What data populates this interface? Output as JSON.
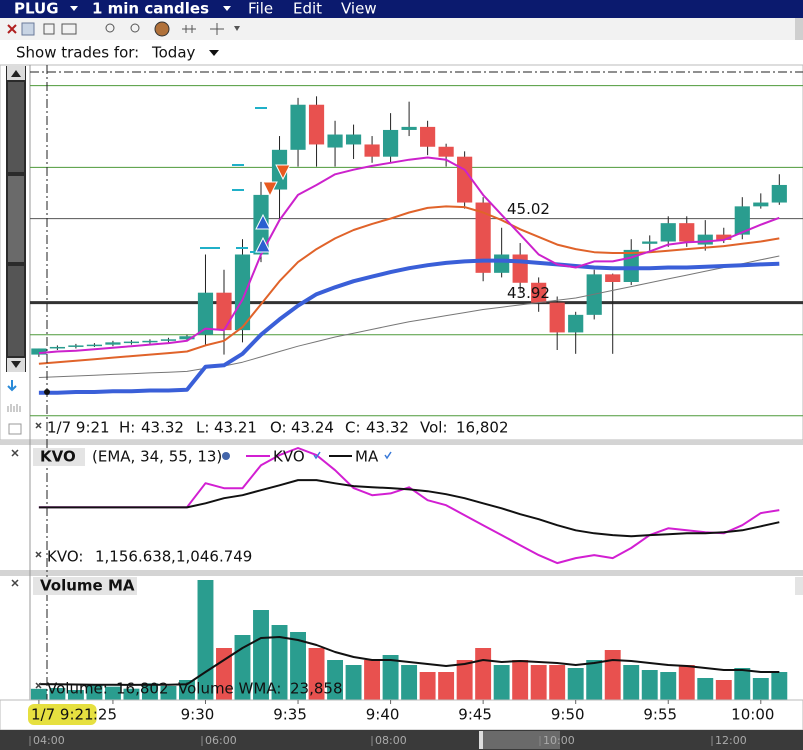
{
  "menu": {
    "symbol": "PLUG",
    "interval": "1 min candles",
    "items": [
      "File",
      "Edit",
      "View"
    ]
  },
  "trades_filter": {
    "label": "Show trades for:",
    "value": "Today"
  },
  "status": {
    "date": "1/7 9:21",
    "labels": [
      "H:",
      "L:",
      "O:",
      "C:",
      "Vol:"
    ]
  },
  "scroller": {
    "labels": [
      "04:00",
      "06:00",
      "08:00",
      "10:00",
      "12:00"
    ]
  },
  "chart_data": [
    {
      "type": "candlestick",
      "x": [
        0,
        1,
        2,
        3,
        4,
        5,
        6,
        7,
        8,
        9,
        10,
        11,
        12,
        13,
        14,
        15,
        16,
        17,
        18,
        19,
        20,
        21,
        22,
        23,
        24,
        25,
        26,
        27,
        28,
        29,
        30,
        31,
        32,
        33,
        34,
        35,
        36,
        37,
        38,
        39,
        40
      ],
      "xlim": [
        -0.48,
        41.28
      ],
      "ylim": [
        42.41,
        47.03
      ],
      "open": [
        43.24,
        43.32,
        43.34,
        43.36,
        43.37,
        43.4,
        43.41,
        43.42,
        43.44,
        43.5,
        44.05,
        43.56,
        44.55,
        45.4,
        45.92,
        46.51,
        45.95,
        45.99,
        45.99,
        45.83,
        46.18,
        46.22,
        45.96,
        45.83,
        45.23,
        44.31,
        44.55,
        44.18,
        43.92,
        43.53,
        43.76,
        44.29,
        44.19,
        44.69,
        44.72,
        44.96,
        44.68,
        44.81,
        44.81,
        45.18,
        45.23
      ],
      "high": [
        43.32,
        43.36,
        43.38,
        43.39,
        43.42,
        43.43,
        43.44,
        43.46,
        43.5,
        44.55,
        44.35,
        44.75,
        45.5,
        46.1,
        46.6,
        46.62,
        46.3,
        46.25,
        46.1,
        46.4,
        46.55,
        46.3,
        46.0,
        45.9,
        45.3,
        44.9,
        44.7,
        44.25,
        44.0,
        43.8,
        44.35,
        44.3,
        44.75,
        44.8,
        45.05,
        45.05,
        45.0,
        44.9,
        45.3,
        45.35,
        45.6
      ],
      "low": [
        43.21,
        43.3,
        43.32,
        43.34,
        43.35,
        43.37,
        43.38,
        43.4,
        43.42,
        43.37,
        43.24,
        43.4,
        44.45,
        45.0,
        45.7,
        45.7,
        45.7,
        45.8,
        45.75,
        45.75,
        46.1,
        45.85,
        45.7,
        45.15,
        44.2,
        44.25,
        44.05,
        43.8,
        43.3,
        43.25,
        43.7,
        43.25,
        44.15,
        44.6,
        44.65,
        44.65,
        44.6,
        44.7,
        44.75,
        45.15,
        45.2
      ],
      "close": [
        43.32,
        43.34,
        43.36,
        43.37,
        43.4,
        43.41,
        43.42,
        43.44,
        43.48,
        44.05,
        43.56,
        44.55,
        45.33,
        45.92,
        46.51,
        45.99,
        46.12,
        46.12,
        45.83,
        46.18,
        46.22,
        45.96,
        45.83,
        45.23,
        44.31,
        44.55,
        44.18,
        43.92,
        43.53,
        43.76,
        44.29,
        44.19,
        44.61,
        44.72,
        44.96,
        44.72,
        44.81,
        44.74,
        45.18,
        45.23,
        45.46
      ],
      "up_color": "#2a9d8f",
      "down_color": "#e8514f",
      "green_levels": [
        46.76,
        45.69,
        43.5,
        42.44
      ],
      "green_color": "#4e9a3a",
      "levels": [
        45.02,
        43.92
      ],
      "level_colors": [
        "#555555",
        "#333333"
      ],
      "level_widths": [
        1,
        3
      ],
      "series": [
        {
          "color": "#777777",
          "width": 1,
          "values": [
            42.94,
            42.95,
            42.96,
            42.97,
            42.98,
            42.99,
            43.0,
            43.01,
            43.02,
            43.06,
            43.09,
            43.14,
            43.21,
            43.28,
            43.35,
            43.41,
            43.47,
            43.52,
            43.57,
            43.62,
            43.67,
            43.71,
            43.75,
            43.79,
            43.83,
            43.86,
            43.89,
            43.92,
            43.95,
            43.98,
            44.03,
            44.08,
            44.13,
            44.18,
            44.23,
            44.28,
            44.33,
            44.38,
            44.43,
            44.48,
            44.53
          ]
        },
        {
          "color": "#3a5fd8",
          "width": 4,
          "values": [
            42.74,
            42.74,
            42.75,
            42.75,
            42.76,
            42.76,
            42.77,
            42.77,
            42.78,
            43.08,
            43.1,
            43.25,
            43.5,
            43.7,
            43.88,
            44.03,
            44.12,
            44.2,
            44.26,
            44.32,
            44.37,
            44.41,
            44.44,
            44.46,
            44.47,
            44.47,
            44.46,
            44.44,
            44.42,
            44.4,
            44.38,
            44.37,
            44.37,
            44.37,
            44.38,
            44.38,
            44.39,
            44.4,
            44.41,
            44.42,
            44.43
          ]
        },
        {
          "color": "#e0632a",
          "width": 2,
          "values": [
            43.12,
            43.14,
            43.16,
            43.18,
            43.2,
            43.22,
            43.24,
            43.26,
            43.28,
            43.36,
            43.42,
            43.6,
            43.9,
            44.2,
            44.45,
            44.62,
            44.76,
            44.87,
            44.95,
            45.02,
            45.1,
            45.16,
            45.18,
            45.17,
            45.1,
            45.0,
            44.88,
            44.78,
            44.68,
            44.62,
            44.58,
            44.57,
            44.57,
            44.58,
            44.6,
            44.62,
            44.64,
            44.66,
            44.69,
            44.72,
            44.76
          ]
        },
        {
          "color": "#cc22cc",
          "width": 2,
          "values": [
            43.26,
            43.28,
            43.29,
            43.31,
            43.33,
            43.35,
            43.37,
            43.39,
            43.42,
            43.58,
            43.56,
            43.96,
            44.55,
            45.0,
            45.33,
            45.46,
            45.6,
            45.66,
            45.71,
            45.75,
            45.79,
            45.82,
            45.79,
            45.66,
            45.33,
            45.07,
            44.81,
            44.55,
            44.42,
            44.38,
            44.46,
            44.46,
            44.51,
            44.59,
            44.68,
            44.71,
            44.72,
            44.74,
            44.84,
            44.94,
            45.03
          ]
        }
      ]
    },
    {
      "type": "line",
      "title": "KVO",
      "params": "(EMA, 34, 55, 13)",
      "readout_label": "KVO:",
      "separator": ",",
      "x": [
        0,
        1,
        2,
        3,
        4,
        5,
        6,
        7,
        8,
        9,
        10,
        11,
        12,
        13,
        14,
        15,
        16,
        17,
        18,
        19,
        20,
        21,
        22,
        23,
        24,
        25,
        26,
        27,
        28,
        29,
        30,
        31,
        32,
        33,
        34,
        35,
        36,
        37,
        38,
        39,
        40
      ],
      "xlim": [
        -0.48,
        41.28
      ],
      "ylim": [
        -30000,
        32000
      ],
      "series": [
        {
          "name": "KVO",
          "color": "#d21fd2",
          "width": 2,
          "values": [
            1156.638,
            1150,
            1150,
            1150,
            1150,
            1150,
            1150,
            1150,
            1150,
            13060,
            10580,
            10580,
            22000,
            27000,
            30500,
            27000,
            19500,
            10600,
            7100,
            8000,
            11000,
            4600,
            2150,
            -2800,
            -7800,
            -12700,
            -17700,
            -22600,
            -26600,
            -24100,
            -22600,
            -24100,
            -19100,
            -12700,
            -9300,
            -10300,
            -11300,
            -11800,
            -7800,
            -1800,
            -300
          ],
          "value_labels": [
            "1,156.638",
            null,
            null,
            null,
            null,
            null,
            null,
            null,
            null,
            null,
            null,
            null,
            null,
            null,
            null,
            null,
            null,
            null,
            null,
            null,
            null,
            null,
            null,
            null,
            null,
            null,
            null,
            null,
            null,
            null,
            null,
            null,
            null,
            null,
            null,
            null,
            null,
            null,
            null,
            null,
            null
          ]
        },
        {
          "name": "MA",
          "color": "#111111",
          "width": 2,
          "values": [
            1046.749,
            1040,
            1040,
            1040,
            1040,
            1040,
            1040,
            1040,
            1040,
            3100,
            5600,
            7100,
            9600,
            12000,
            14600,
            14600,
            13000,
            11600,
            11000,
            10600,
            10000,
            9100,
            7600,
            5600,
            3100,
            600,
            -2300,
            -4800,
            -7800,
            -10300,
            -11800,
            -12700,
            -13300,
            -12700,
            -12300,
            -11800,
            -11800,
            -11300,
            -10300,
            -8300,
            -6300
          ],
          "value_labels": [
            "1,046.749",
            null,
            null,
            null,
            null,
            null,
            null,
            null,
            null,
            null,
            null,
            null,
            null,
            null,
            null,
            null,
            null,
            null,
            null,
            null,
            null,
            null,
            null,
            null,
            null,
            null,
            null,
            null,
            null,
            null,
            null,
            null,
            null,
            null,
            null,
            null,
            null,
            null,
            null,
            null,
            null
          ]
        }
      ]
    },
    {
      "type": "bar",
      "title": "Volume MA",
      "x": [
        0,
        1,
        2,
        3,
        4,
        5,
        6,
        7,
        8,
        9,
        10,
        11,
        12,
        13,
        14,
        15,
        16,
        17,
        18,
        19,
        20,
        21,
        22,
        23,
        24,
        25,
        26,
        27,
        28,
        29,
        30,
        31,
        32,
        33,
        34,
        35,
        36,
        37,
        38,
        39,
        40
      ],
      "xlim": [
        -0.48,
        41.28
      ],
      "ylim": [
        0,
        183000
      ],
      "xticks": [
        {
          "value": 0,
          "label": "1/7 9:21"
        },
        {
          "value": 4,
          "label": ":25"
        },
        {
          "value": 9,
          "label": "9:30"
        },
        {
          "value": 14,
          "label": "9:35"
        },
        {
          "value": 19,
          "label": "9:40"
        },
        {
          "value": 24,
          "label": "9:45"
        },
        {
          "value": 29,
          "label": "9:50"
        },
        {
          "value": 34,
          "label": "9:55"
        },
        {
          "value": 39,
          "label": "10:00"
        }
      ],
      "up_color": "#2a9d8f",
      "down_color": "#e8514f",
      "series": [
        {
          "name": "Volume:",
          "color": "#33bbcc",
          "values": [
            16802,
            18000,
            15000,
            22000,
            20000,
            17000,
            25000,
            21000,
            30000,
            180000,
            78000,
            97500,
            135000,
            112500,
            102000,
            78000,
            60000,
            52500,
            60000,
            67500,
            52500,
            42000,
            42000,
            60000,
            78000,
            52500,
            60000,
            52500,
            52500,
            48000,
            60000,
            75000,
            52500,
            45000,
            42000,
            52500,
            33000,
            30000,
            48000,
            33000,
            42000
          ],
          "value_labels": [
            "16,802",
            null,
            null,
            null,
            null,
            null,
            null,
            null,
            null,
            null,
            null,
            null,
            null,
            null,
            null,
            null,
            null,
            null,
            null,
            null,
            null,
            null,
            null,
            null,
            null,
            null,
            null,
            null,
            null,
            null,
            null,
            null,
            null,
            null,
            null,
            null,
            null,
            null,
            null,
            null,
            null
          ]
        },
        {
          "name": "Volume WMA:",
          "type": "line",
          "color": "#111111",
          "width": 2,
          "values": [
            23858,
            23500,
            23200,
            23000,
            22800,
            22600,
            22900,
            23000,
            23500,
            42000,
            60000,
            78000,
            93000,
            94500,
            90000,
            82500,
            72000,
            64500,
            60000,
            60000,
            57000,
            54000,
            51000,
            54000,
            60000,
            57000,
            58500,
            57000,
            55500,
            52500,
            55500,
            60000,
            58500,
            55500,
            52500,
            51000,
            48000,
            45000,
            45000,
            42000,
            42000
          ],
          "value_labels": [
            "23,858",
            null,
            null,
            null,
            null,
            null,
            null,
            null,
            null,
            null,
            null,
            null,
            null,
            null,
            null,
            null,
            null,
            null,
            null,
            null,
            null,
            null,
            null,
            null,
            null,
            null,
            null,
            null,
            null,
            null,
            null,
            null,
            null,
            null,
            null,
            null,
            null,
            null,
            null,
            null,
            null
          ]
        }
      ]
    }
  ]
}
